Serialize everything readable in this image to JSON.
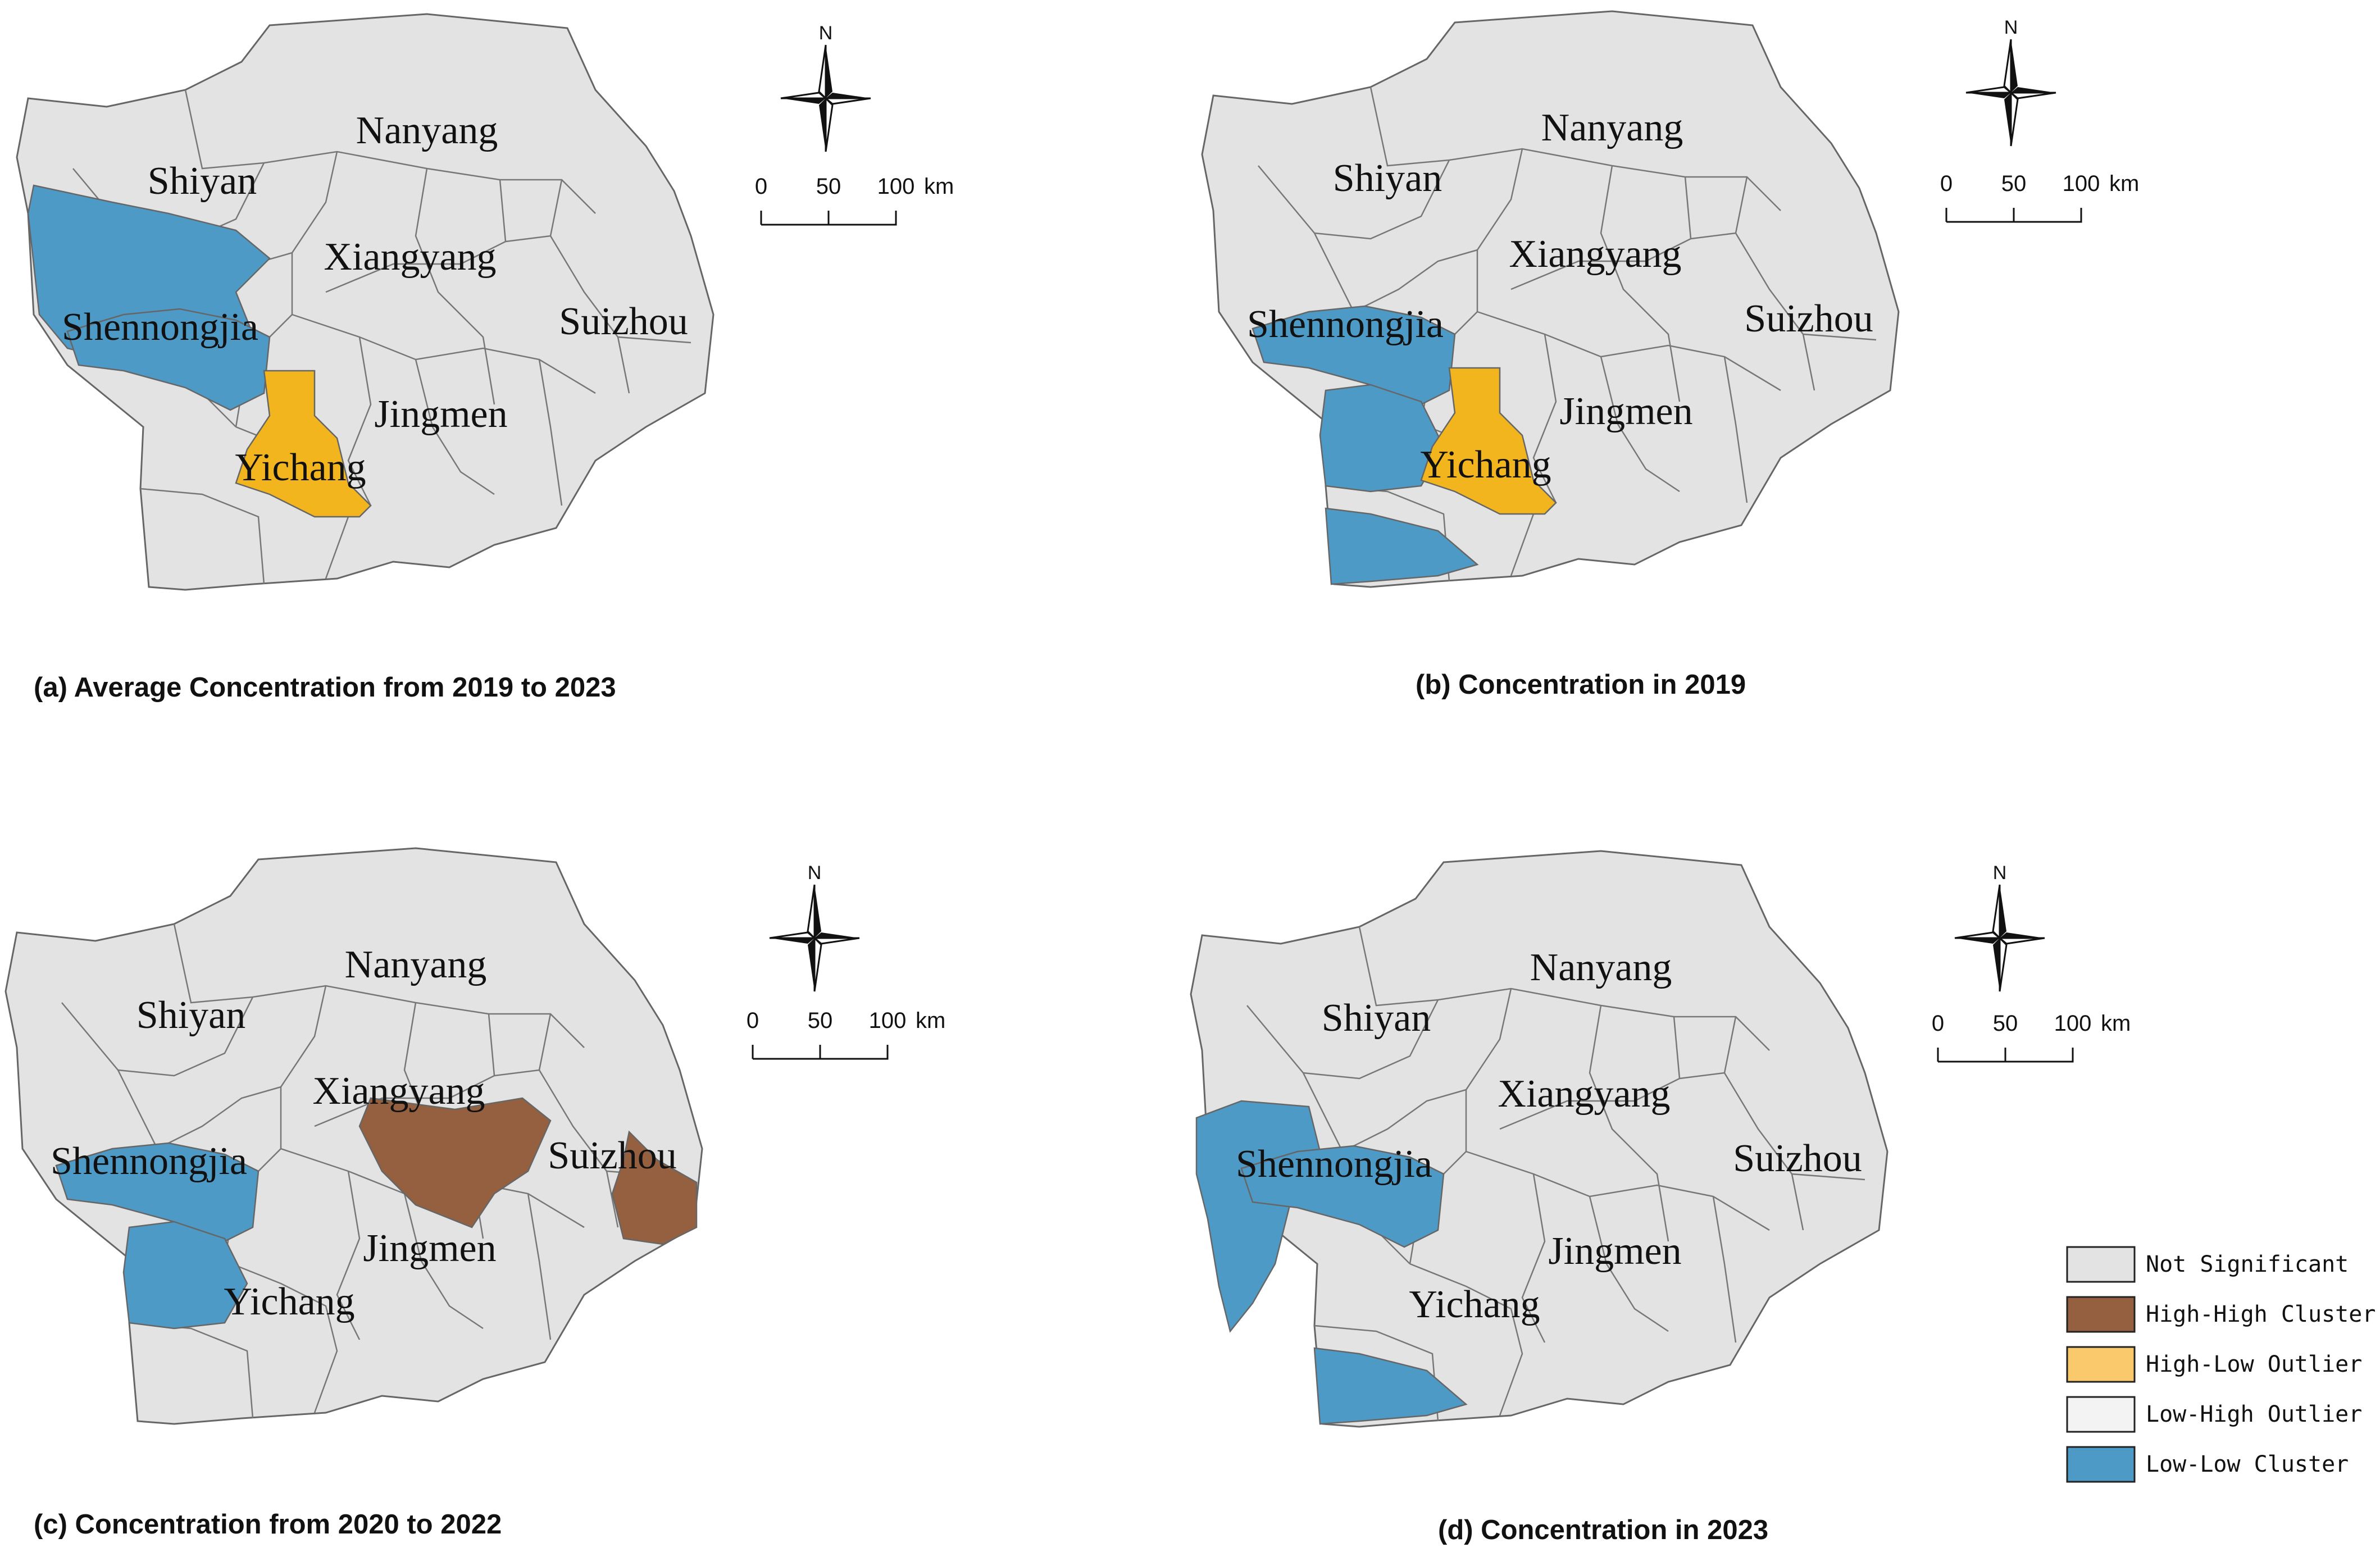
{
  "colors": {
    "not_significant": "#e3e3e3",
    "high_high": "#95603f",
    "high_low": "#f2b51e",
    "low_high": "#f3f3f3",
    "low_low": "#4e9ac6",
    "border": "#666666"
  },
  "legend": {
    "items": [
      {
        "label": "Not Significant",
        "color": "#e3e3e3"
      },
      {
        "label": "High-High Cluster",
        "color": "#95603f"
      },
      {
        "label": "High-Low Outlier",
        "color": "#f9c96c"
      },
      {
        "label": "Low-High Outlier",
        "color": "#f3f3f3"
      },
      {
        "label": "Low-Low Cluster",
        "color": "#4e9ac6"
      }
    ]
  },
  "compass": {
    "north": "N"
  },
  "scale_bar": {
    "labels": [
      "0",
      "50",
      "100"
    ],
    "unit": "km"
  },
  "cities": {
    "nanyang": "Nanyang",
    "shiyan": "Shiyan",
    "xiangyang": "Xiangyang",
    "suizhou": "Suizhou",
    "shennongjia": "Shennongjia",
    "jingmen": "Jingmen",
    "yichang": "Yichang"
  },
  "panels": [
    {
      "caption": "(a) Average Concentration from 2019 to 2023",
      "clusters": {
        "shiyan_sw": "low_low",
        "shennongjia": "low_low",
        "yichang": "high_low"
      }
    },
    {
      "caption": "(b) Concentration in 2019",
      "clusters": {
        "shennongjia": "low_low",
        "yichang_w": "low_low",
        "yichang_s": "low_low",
        "yichang": "high_low"
      }
    },
    {
      "caption": "(c) Concentration from 2020 to 2022",
      "clusters": {
        "shennongjia": "low_low",
        "yichang_w": "low_low",
        "xiangyang": "high_high",
        "suizhou_e": "high_high"
      }
    },
    {
      "caption": "(d) Concentration in 2023",
      "clusters": {
        "shiyan_w": "low_low",
        "shennongjia": "low_low",
        "yichang_s": "low_low"
      }
    }
  ]
}
